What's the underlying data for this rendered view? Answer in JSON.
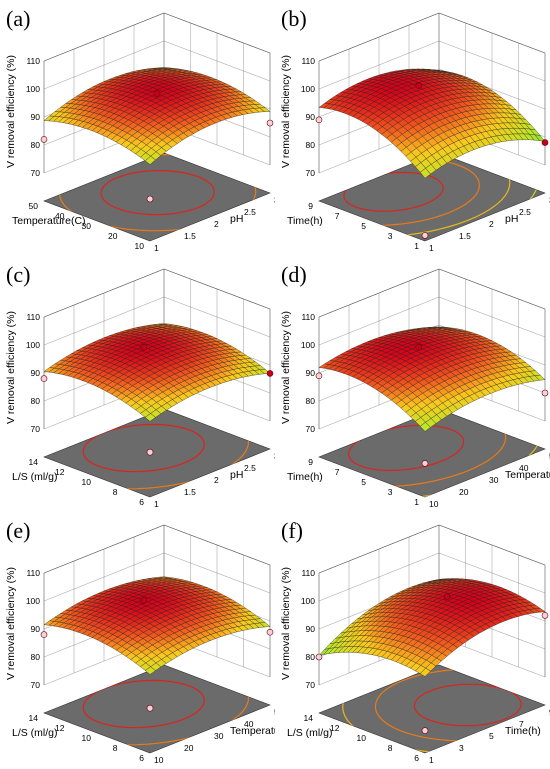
{
  "chart_data": [
    {
      "type": "surface",
      "panel_label": "(a)",
      "zlabel": "V removal efficiency (%)",
      "xlabel": "pH",
      "ylabel": "Temperature(C)",
      "x_range": [
        1,
        3
      ],
      "y_range": [
        10,
        50
      ],
      "z_range": [
        70,
        110
      ],
      "x_ticks": [
        "1",
        "1.5",
        "2",
        "2.5",
        "3"
      ],
      "y_ticks": [
        "10",
        "20",
        "30",
        "40",
        "50"
      ],
      "z_ticks": [
        "70",
        "80",
        "90",
        "100",
        "110"
      ],
      "points": [
        {
          "x": 2,
          "y": 30,
          "z": 97
        },
        {
          "x": 1,
          "y": 50,
          "z": 82
        },
        {
          "x": 3,
          "y": 10,
          "z": 85
        },
        {
          "x": 1,
          "y": 10,
          "z": 75
        }
      ],
      "surface": {
        "peak_x": 2.1,
        "peak_y": 32,
        "peak_z": 97,
        "min_z": 75,
        "ax": 18,
        "ay": 14,
        "cxy": 0
      }
    },
    {
      "type": "surface",
      "panel_label": "(b)",
      "zlabel": "V removal efficiency (%)",
      "xlabel": "pH",
      "ylabel": "Time(h)",
      "x_range": [
        1,
        3
      ],
      "y_range": [
        1,
        9
      ],
      "z_range": [
        70,
        110
      ],
      "x_ticks": [
        "1",
        "1.5",
        "2",
        "2.5",
        "3"
      ],
      "y_ticks": [
        "1",
        "3",
        "5",
        "7",
        "9"
      ],
      "z_ticks": [
        "70",
        "80",
        "90",
        "100",
        "110"
      ],
      "points": [
        {
          "x": 2,
          "y": 6,
          "z": 98
        },
        {
          "x": 1,
          "y": 9,
          "z": 89
        },
        {
          "x": 3,
          "y": 1,
          "z": 78
        },
        {
          "x": 1,
          "y": 1,
          "z": 62
        }
      ],
      "surface": {
        "peak_x": 1.8,
        "peak_y": 7,
        "peak_z": 98,
        "min_z": 62,
        "ax": 20,
        "ay": 22,
        "cxy": 0
      }
    },
    {
      "type": "surface",
      "panel_label": "(c)",
      "zlabel": "V removal efficiency (%)",
      "xlabel": "pH",
      "ylabel": "L/S (ml/g)",
      "x_range": [
        1,
        3
      ],
      "y_range": [
        6,
        14
      ],
      "z_range": [
        70,
        110
      ],
      "x_ticks": [
        "1",
        "1.5",
        "2",
        "2.5",
        "3"
      ],
      "y_ticks": [
        "6",
        "8",
        "10",
        "12",
        "14"
      ],
      "z_ticks": [
        "70",
        "80",
        "90",
        "100",
        "110"
      ],
      "points": [
        {
          "x": 2,
          "y": 11,
          "z": 96
        },
        {
          "x": 1,
          "y": 14,
          "z": 88
        },
        {
          "x": 3,
          "y": 6,
          "z": 87
        },
        {
          "x": 1,
          "y": 6,
          "z": 76
        }
      ],
      "surface": {
        "peak_x": 2,
        "peak_y": 11,
        "peak_z": 96,
        "min_z": 76,
        "ax": 14,
        "ay": 14,
        "cxy": 0
      }
    },
    {
      "type": "surface",
      "panel_label": "(d)",
      "zlabel": "V removal efficiency (%)",
      "xlabel": "Temperature(C)",
      "ylabel": "Time(h)",
      "x_range": [
        10,
        50
      ],
      "y_range": [
        1,
        9
      ],
      "z_range": [
        70,
        110
      ],
      "x_ticks": [
        "10",
        "20",
        "30",
        "40",
        "50"
      ],
      "y_ticks": [
        "1",
        "3",
        "5",
        "7",
        "9"
      ],
      "z_ticks": [
        "70",
        "80",
        "90",
        "100",
        "110"
      ],
      "points": [
        {
          "x": 30,
          "y": 6,
          "z": 96
        },
        {
          "x": 10,
          "y": 9,
          "z": 89
        },
        {
          "x": 50,
          "y": 1,
          "z": 80
        },
        {
          "x": 10,
          "y": 1,
          "z": 72
        }
      ],
      "surface": {
        "peak_x": 28,
        "peak_y": 6.5,
        "peak_z": 96,
        "min_z": 70,
        "ax": 14,
        "ay": 18,
        "cxy": 4
      }
    },
    {
      "type": "surface",
      "panel_label": "(e)",
      "zlabel": "V removal efficiency (%)",
      "xlabel": "Temperature(C)",
      "ylabel": "L/S (ml/g)",
      "x_range": [
        10,
        50
      ],
      "y_range": [
        6,
        14
      ],
      "z_range": [
        70,
        110
      ],
      "x_ticks": [
        "10",
        "20",
        "30",
        "40",
        "50"
      ],
      "y_ticks": [
        "6",
        "8",
        "10",
        "12",
        "14"
      ],
      "z_ticks": [
        "70",
        "80",
        "90",
        "100",
        "110"
      ],
      "points": [
        {
          "x": 30,
          "y": 11,
          "z": 97
        },
        {
          "x": 10,
          "y": 14,
          "z": 88
        },
        {
          "x": 50,
          "y": 6,
          "z": 86
        },
        {
          "x": 10,
          "y": 6,
          "z": 76
        }
      ],
      "surface": {
        "peak_x": 30,
        "peak_y": 11,
        "peak_z": 97,
        "min_z": 76,
        "ax": 14,
        "ay": 14,
        "cxy": 0
      }
    },
    {
      "type": "surface",
      "panel_label": "(f)",
      "zlabel": "V removal efficiency (%)",
      "xlabel": "Time(h)",
      "ylabel": "L/S (ml/g)",
      "x_range": [
        1,
        9
      ],
      "y_range": [
        6,
        14
      ],
      "z_range": [
        70,
        110
      ],
      "x_ticks": [
        "1",
        "3",
        "5",
        "7",
        "9"
      ],
      "y_ticks": [
        "6",
        "8",
        "10",
        "12",
        "14"
      ],
      "z_ticks": [
        "70",
        "80",
        "90",
        "100",
        "110"
      ],
      "points": [
        {
          "x": 6,
          "y": 10,
          "z": 98
        },
        {
          "x": 1,
          "y": 14,
          "z": 80
        },
        {
          "x": 9,
          "y": 6,
          "z": 92
        },
        {
          "x": 1,
          "y": 6,
          "z": 68
        }
      ],
      "surface": {
        "peak_x": 6.5,
        "peak_y": 9,
        "peak_z": 98,
        "min_z": 65,
        "ax": 20,
        "ay": 16,
        "cxy": -4
      }
    }
  ]
}
